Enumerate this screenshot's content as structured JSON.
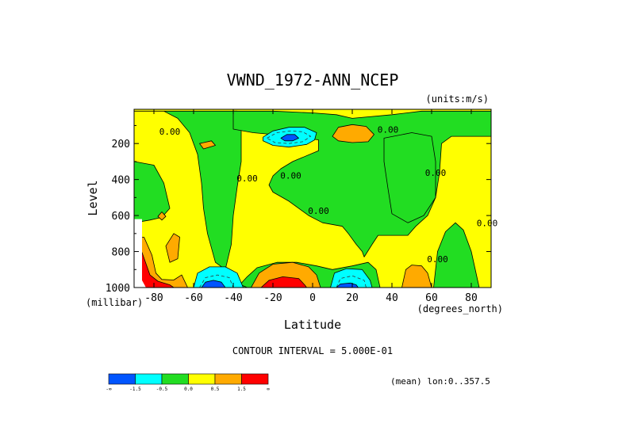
{
  "chart_data": {
    "type": "heatmap",
    "title": "VWND_1972-ANN_NCEP",
    "units_label": "(units:m/s)",
    "xlabel": "Latitude",
    "x_units": "(degrees_north)",
    "ylabel": "Level",
    "y_units": "(millibar)",
    "xlim": [
      -90,
      90
    ],
    "ylim": [
      1000,
      10
    ],
    "y_inverted": true,
    "x_ticks": [
      "-80",
      "-60",
      "-40",
      "-20",
      "0",
      "20",
      "40",
      "60",
      "80"
    ],
    "x_tick_values": [
      -80,
      -60,
      -40,
      -20,
      0,
      20,
      40,
      60,
      80
    ],
    "y_ticks": [
      "200",
      "400",
      "600",
      "800",
      "1000"
    ],
    "y_tick_values": [
      200,
      400,
      600,
      800,
      1000
    ],
    "contour_interval_text": "CONTOUR INTERVAL = 5.000E-01",
    "mean_text": "(mean) lon:0..357.5",
    "contour_labels": [
      {
        "text": "0.00",
        "lat": -72,
        "lev": 150
      },
      {
        "text": "0.00",
        "lat": -33,
        "lev": 410
      },
      {
        "text": "0.00",
        "lat": -11,
        "lev": 395
      },
      {
        "text": "0.00",
        "lat": 3,
        "lev": 590
      },
      {
        "text": "0.00",
        "lat": 38,
        "lev": 140
      },
      {
        "text": "0.00",
        "lat": 62,
        "lev": 380
      },
      {
        "text": "0.00",
        "lat": 88,
        "lev": 660
      },
      {
        "text": "0.00",
        "lat": 63,
        "lev": 860
      }
    ],
    "color_levels": {
      "colors": [
        "#0055ff",
        "#00ffff",
        "#22dd22",
        "#ffff00",
        "#ffaa00",
        "#ff0000"
      ],
      "dash_color": "#333333",
      "labels": [
        "-1.5",
        "-0.5",
        "0.0",
        "0.5",
        "1.5"
      ],
      "end_labels": [
        "-∞",
        "∞"
      ]
    },
    "regions": [
      {
        "level": "green",
        "points": [
          [
            -90,
            20
          ],
          [
            -75,
            20
          ],
          [
            -68,
            60
          ],
          [
            -62,
            140
          ],
          [
            -58,
            260
          ],
          [
            -56,
            420
          ],
          [
            -55,
            560
          ],
          [
            -53,
            700
          ],
          [
            -49,
            860
          ],
          [
            -44,
            900
          ],
          [
            -41,
            760
          ],
          [
            -40,
            600
          ],
          [
            -38,
            440
          ],
          [
            -36,
            300
          ],
          [
            -36,
            120
          ],
          [
            -38,
            20
          ],
          [
            -90,
            20
          ]
        ]
      },
      {
        "level": "green",
        "points": [
          [
            -90,
            300
          ],
          [
            -80,
            320
          ],
          [
            -75,
            420
          ],
          [
            -72,
            560
          ],
          [
            -76,
            610
          ],
          [
            -82,
            625
          ],
          [
            -90,
            640
          ]
        ]
      },
      {
        "level": "green",
        "points": [
          [
            -40,
            20
          ],
          [
            -40,
            120
          ],
          [
            -30,
            140
          ],
          [
            -10,
            160
          ],
          [
            3,
            180
          ],
          [
            3,
            240
          ],
          [
            -10,
            300
          ],
          [
            -16,
            340
          ],
          [
            -20,
            380
          ],
          [
            -22,
            430
          ],
          [
            -20,
            470
          ],
          [
            -12,
            520
          ],
          [
            -2,
            600
          ],
          [
            5,
            640
          ],
          [
            15,
            660
          ],
          [
            18,
            700
          ],
          [
            22,
            760
          ],
          [
            25,
            800
          ],
          [
            26,
            830
          ],
          [
            30,
            760
          ],
          [
            33,
            710
          ],
          [
            38,
            710
          ],
          [
            48,
            710
          ],
          [
            52,
            660
          ],
          [
            58,
            600
          ],
          [
            62,
            500
          ],
          [
            64,
            360
          ],
          [
            65,
            200
          ],
          [
            70,
            160
          ],
          [
            90,
            160
          ],
          [
            90,
            20
          ],
          [
            55,
            20
          ],
          [
            40,
            40
          ],
          [
            20,
            60
          ],
          [
            12,
            40
          ],
          [
            0,
            30
          ],
          [
            -20,
            20
          ],
          [
            -40,
            20
          ]
        ]
      },
      {
        "level": "green",
        "points": [
          [
            36,
            170
          ],
          [
            50,
            140
          ],
          [
            60,
            160
          ],
          [
            62,
            300
          ],
          [
            62,
            500
          ],
          [
            56,
            600
          ],
          [
            48,
            640
          ],
          [
            40,
            590
          ],
          [
            38,
            450
          ],
          [
            36,
            300
          ],
          [
            36,
            170
          ]
        ]
      },
      {
        "level": "green",
        "points": [
          [
            61,
            1000
          ],
          [
            63,
            800
          ],
          [
            67,
            690
          ],
          [
            72,
            640
          ],
          [
            76,
            680
          ],
          [
            80,
            800
          ],
          [
            84,
            1000
          ]
        ]
      },
      {
        "level": "green",
        "points": [
          [
            -38,
            1000
          ],
          [
            -33,
            940
          ],
          [
            -28,
            890
          ],
          [
            -18,
            860
          ],
          [
            -8,
            860
          ],
          [
            2,
            880
          ],
          [
            10,
            900
          ],
          [
            20,
            880
          ],
          [
            28,
            860
          ],
          [
            32,
            900
          ],
          [
            34,
            1000
          ]
        ]
      },
      {
        "level": "green",
        "points": [
          [
            -52,
            1000
          ],
          [
            -45,
            965
          ],
          [
            -35,
            990
          ],
          [
            -33,
            1000
          ]
        ]
      },
      {
        "level": "cyan",
        "points": [
          [
            -25,
            165
          ],
          [
            -20,
            130
          ],
          [
            -12,
            110
          ],
          [
            -4,
            110
          ],
          [
            2,
            140
          ],
          [
            1,
            180
          ],
          [
            -3,
            205
          ],
          [
            -12,
            220
          ],
          [
            -20,
            210
          ],
          [
            -25,
            185
          ]
        ]
      },
      {
        "level": "blue",
        "points": [
          [
            -16,
            170
          ],
          [
            -13,
            150
          ],
          [
            -9,
            150
          ],
          [
            -7,
            170
          ],
          [
            -10,
            185
          ],
          [
            -14,
            185
          ]
        ]
      },
      {
        "level": "cyan",
        "points": [
          [
            -60,
            1000
          ],
          [
            -58,
            920
          ],
          [
            -52,
            885
          ],
          [
            -44,
            885
          ],
          [
            -38,
            920
          ],
          [
            -35,
            1000
          ]
        ]
      },
      {
        "level": "blue",
        "points": [
          [
            -56,
            1000
          ],
          [
            -54,
            970
          ],
          [
            -50,
            960
          ],
          [
            -46,
            970
          ],
          [
            -44,
            1000
          ]
        ]
      },
      {
        "level": "cyan",
        "points": [
          [
            9,
            1000
          ],
          [
            11,
            920
          ],
          [
            17,
            895
          ],
          [
            25,
            900
          ],
          [
            29,
            960
          ],
          [
            30,
            1000
          ]
        ]
      },
      {
        "level": "blue",
        "points": [
          [
            12,
            1000
          ],
          [
            14,
            980
          ],
          [
            19,
            975
          ],
          [
            22,
            985
          ],
          [
            23,
            1000
          ]
        ]
      },
      {
        "level": "orange",
        "points": [
          [
            -31,
            1000
          ],
          [
            -27,
            920
          ],
          [
            -20,
            870
          ],
          [
            -10,
            860
          ],
          [
            -2,
            885
          ],
          [
            2,
            930
          ],
          [
            4,
            1000
          ]
        ]
      },
      {
        "level": "red",
        "points": [
          [
            -26,
            1000
          ],
          [
            -22,
            960
          ],
          [
            -15,
            940
          ],
          [
            -7,
            950
          ],
          [
            -4,
            985
          ],
          [
            -3,
            1000
          ]
        ]
      },
      {
        "level": "orange",
        "points": [
          [
            10,
            160
          ],
          [
            13,
            110
          ],
          [
            20,
            95
          ],
          [
            27,
            105
          ],
          [
            31,
            150
          ],
          [
            28,
            190
          ],
          [
            20,
            195
          ],
          [
            13,
            185
          ]
        ]
      },
      {
        "level": "orange",
        "points": [
          [
            -57,
            200
          ],
          [
            -51,
            185
          ],
          [
            -49,
            210
          ],
          [
            -55,
            230
          ]
        ]
      },
      {
        "level": "orange",
        "points": [
          [
            -78,
            605
          ],
          [
            -76,
            580
          ],
          [
            -74,
            605
          ],
          [
            -76,
            625
          ]
        ]
      },
      {
        "level": "orange",
        "points": [
          [
            45,
            1000
          ],
          [
            47,
            900
          ],
          [
            50,
            875
          ],
          [
            55,
            880
          ],
          [
            58,
            920
          ],
          [
            60,
            1000
          ]
        ]
      },
      {
        "level": "orange",
        "points": [
          [
            -88,
            720
          ],
          [
            -85,
            720
          ],
          [
            -81,
            820
          ],
          [
            -79,
            920
          ],
          [
            -76,
            955
          ],
          [
            -70,
            958
          ],
          [
            -66,
            930
          ],
          [
            -63,
            1000
          ],
          [
            -88,
            1000
          ]
        ]
      },
      {
        "level": "orange",
        "points": [
          [
            -74,
            770
          ],
          [
            -70,
            700
          ],
          [
            -67,
            720
          ],
          [
            -68,
            840
          ],
          [
            -72,
            860
          ]
        ]
      },
      {
        "level": "red",
        "points": [
          [
            -88,
            800
          ],
          [
            -86,
            805
          ],
          [
            -82,
            930
          ],
          [
            -78,
            965
          ],
          [
            -72,
            985
          ],
          [
            -70,
            1000
          ],
          [
            -88,
            1000
          ]
        ]
      },
      {
        "level": "white",
        "points": [
          [
            -90,
            620
          ],
          [
            -86,
            620
          ],
          [
            -86,
            960
          ],
          [
            -84,
            1000
          ],
          [
            -90,
            1000
          ]
        ]
      }
    ],
    "dashed_lines": [
      {
        "points": [
          [
            -23,
            170
          ],
          [
            -18,
            140
          ],
          [
            -11,
            130
          ],
          [
            -5,
            135
          ],
          [
            -1,
            160
          ],
          [
            -5,
            190
          ],
          [
            -12,
            200
          ],
          [
            -19,
            195
          ],
          [
            -23,
            170
          ]
        ]
      },
      {
        "points": [
          [
            -57,
            1000
          ],
          [
            -54,
            945
          ],
          [
            -48,
            930
          ],
          [
            -42,
            945
          ],
          [
            -40,
            1000
          ]
        ]
      },
      {
        "points": [
          [
            12,
            1000
          ],
          [
            14,
            950
          ],
          [
            20,
            935
          ],
          [
            26,
            960
          ],
          [
            27,
            1000
          ]
        ]
      }
    ]
  }
}
